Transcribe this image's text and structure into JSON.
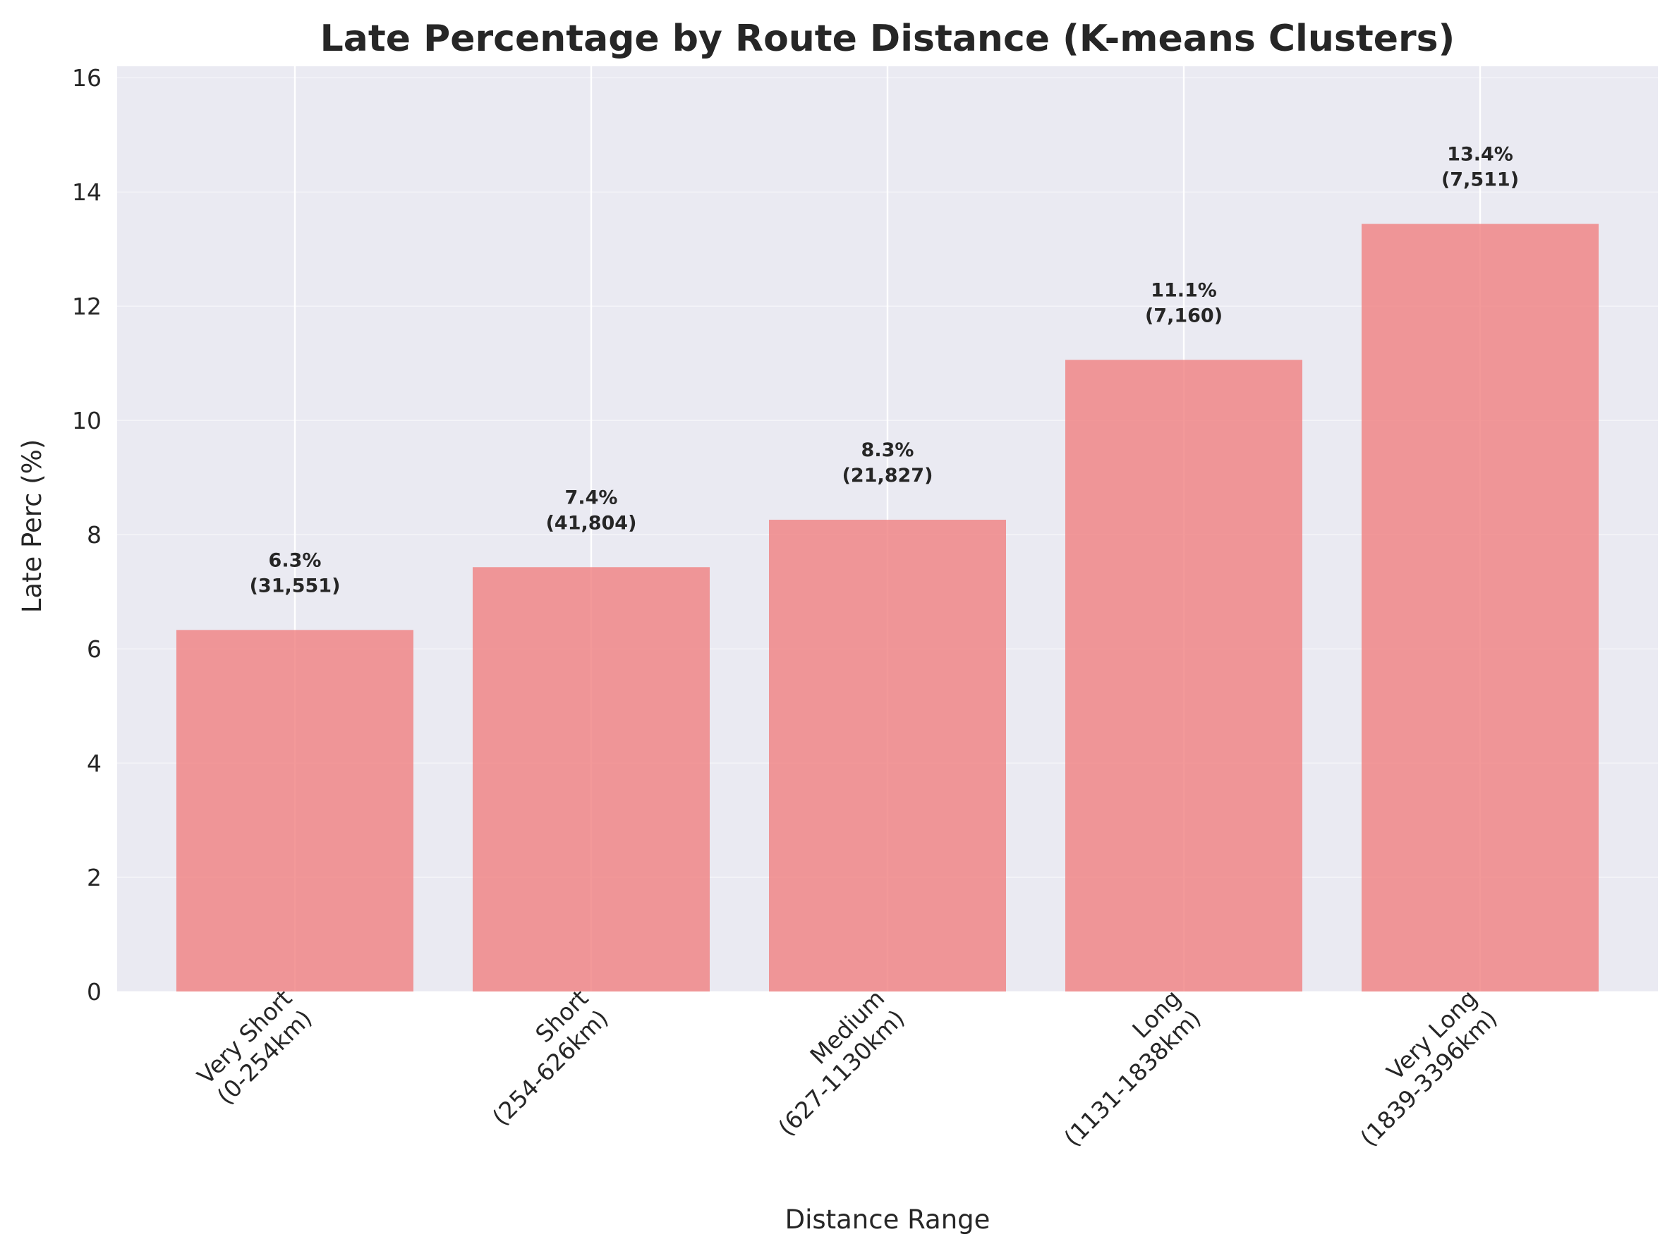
{
  "chart_data": {
    "type": "bar",
    "title": "Late Percentage by Route Distance (K-means Clusters)",
    "xlabel": "Distance Range",
    "ylabel": "Late Perc (%)",
    "ylim": [
      0,
      16.2
    ],
    "yticks": [
      0,
      2,
      4,
      6,
      8,
      10,
      12,
      14,
      16
    ],
    "categories": [
      [
        "Very Short",
        "(0-254km)"
      ],
      [
        "Short",
        "(254-626km)"
      ],
      [
        "Medium",
        "(627-1130km)"
      ],
      [
        "Long",
        "(1131-1838km)"
      ],
      [
        "Very Long",
        "(1839-3396km)"
      ]
    ],
    "values": [
      6.33,
      7.43,
      8.26,
      11.06,
      13.44
    ],
    "data_labels": [
      [
        "6.3%",
        "(31,551)"
      ],
      [
        "7.4%",
        "(41,804)"
      ],
      [
        "8.3%",
        "(21,827)"
      ],
      [
        "11.1%",
        "(7,160)"
      ],
      [
        "13.4%",
        "(7,511)"
      ]
    ],
    "grid": true,
    "colors": {
      "bar": "#f08080",
      "plot_background": "#eaeaf2",
      "grid": "#ffffff",
      "text": "#262626"
    }
  }
}
